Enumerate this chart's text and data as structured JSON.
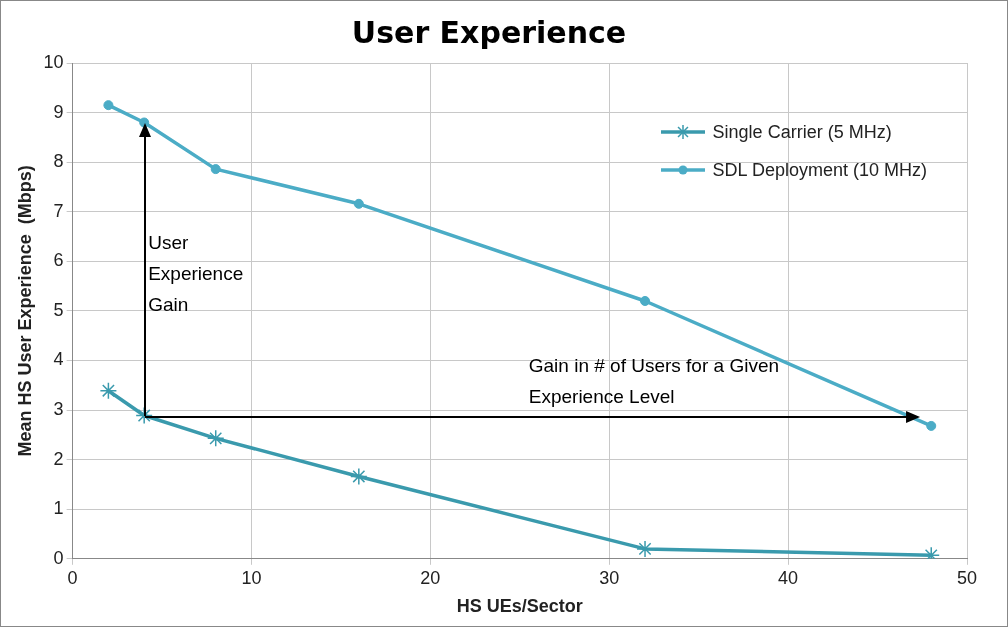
{
  "chart_data": {
    "type": "line",
    "title": "User Experience",
    "xlabel": "HS UEs/Sector",
    "ylabel": "Mean HS User Experience  (Mbps)",
    "xlim": [
      0,
      50
    ],
    "xticks": [
      0,
      10,
      20,
      30,
      40,
      50
    ],
    "ylim": [
      0,
      10
    ],
    "yticks": [
      0,
      1,
      2,
      3,
      4,
      5,
      6,
      7,
      8,
      9,
      10
    ],
    "grid": true,
    "legend": "top right",
    "annotations": [
      "User Experience Gain",
      "Gain in # of Users for a Given Experience Level"
    ],
    "series": [
      {
        "name": "Single Carrier (5 MHz)",
        "color": "#3a9aad",
        "marker": "cross",
        "x": [
          2,
          4,
          8,
          16,
          32,
          48
        ],
        "values": [
          3.39,
          2.89,
          2.43,
          1.66,
          0.2,
          0.07
        ]
      },
      {
        "name": "SDL Deployment (10 MHz)",
        "color": "#4bacc6",
        "marker": "circle",
        "x": [
          2,
          4,
          8,
          16,
          32,
          48
        ],
        "values": [
          9.15,
          8.8,
          7.86,
          7.16,
          5.2,
          2.68
        ]
      }
    ]
  }
}
